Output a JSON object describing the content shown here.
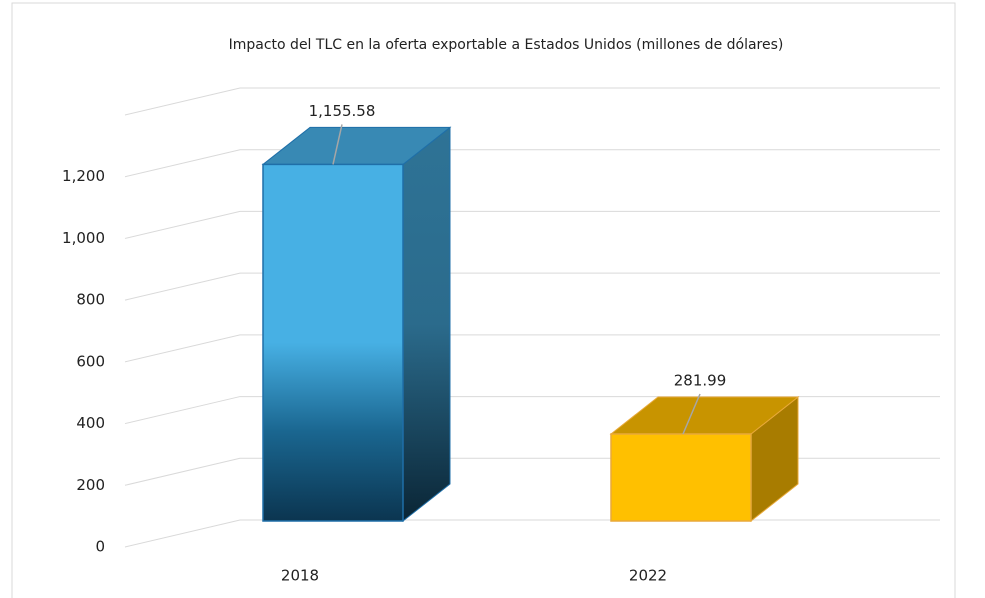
{
  "chart_data": {
    "type": "bar",
    "title": "Impacto  del TLC en la oferta exportable a Estados Unidos (millones de dólares)",
    "categories": [
      "2018",
      "2022"
    ],
    "values": [
      1155.58,
      281.99
    ],
    "value_labels": [
      "1,155.58",
      "281.99"
    ],
    "colors": [
      "#47b0e4",
      "#ffc000"
    ],
    "ylim": [
      0,
      1400
    ],
    "yticks": [
      0,
      200,
      400,
      600,
      800,
      {
        "value": 1000,
        "label": "1,000"
      },
      {
        "value": 1200,
        "label": "1,200"
      }
    ],
    "grid": true
  }
}
